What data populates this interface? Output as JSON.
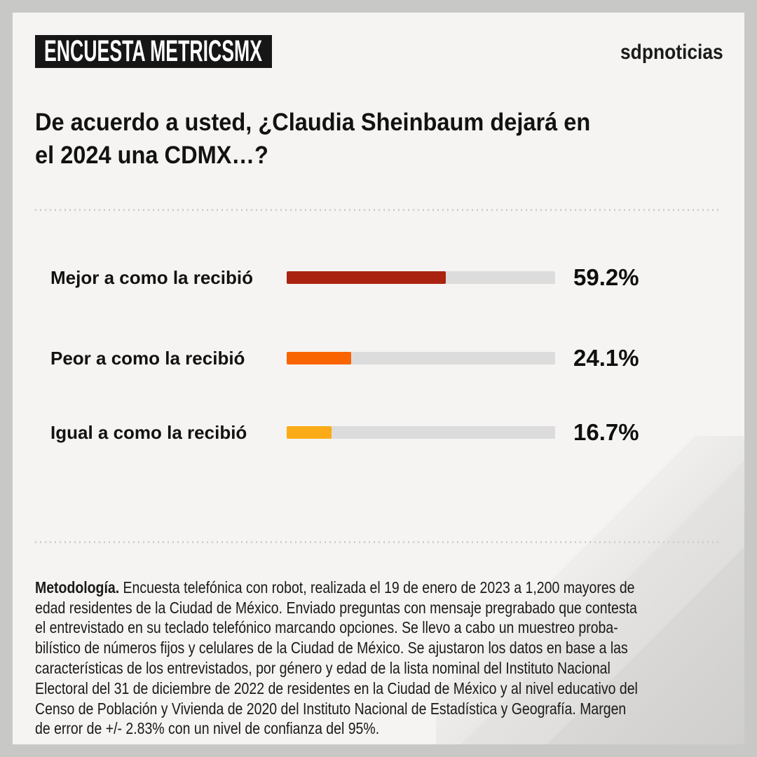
{
  "header": {
    "badge": "ENCUESTA METRICSMX",
    "brand": "sdpnoticias"
  },
  "question": "De acuerdo a usted, ¿Claudia Sheinbaum dejará en\nel 2024 una CDMX…?",
  "chart_data": {
    "type": "bar",
    "orientation": "horizontal",
    "categories": [
      "Mejor a como la recibió",
      "Peor a como la recibió",
      "Igual a como la recibió"
    ],
    "values": [
      59.2,
      24.1,
      16.7
    ],
    "value_labels": [
      "59.2%",
      "24.1%",
      "16.7%"
    ],
    "bar_colors": [
      "#a92310",
      "#fa6400",
      "#fbab18"
    ],
    "track_color": "#dcdcdc",
    "xlim": [
      0,
      100
    ],
    "grid": false,
    "legend": false
  },
  "methodology": {
    "title": "Metodología.",
    "body": " Encuesta telefónica con robot, realizada el 19 de enero de 2023 a 1,200 mayores de\nedad residentes de la Ciudad de México. Enviado preguntas con mensaje pregrabado que contesta\nel entrevistado en su teclado telefónico marcando opciones. Se llevo a cabo un muestreo proba-\nbilístico de números fijos y celulares de la Ciudad de México. Se ajustaron los datos en base a las\ncaracterísticas de los entrevistados, por género y edad de la lista nominal del Instituto Nacional\nElectoral del 31 de diciembre de 2022 de residentes en la Ciudad de México y al nivel educativo del\nCenso de Población y Vivienda de 2020 del Instituto Nacional de Estadística y Geografía. Margen\nde error de +/- 2.83% con un nivel de confianza del 95%."
  },
  "colors": {
    "page_background": "#c8c8c7",
    "card_background": "#f5f4f2",
    "badge_background": "#161616",
    "badge_text": "#ffffff",
    "text": "#121212",
    "divider_dots": "#cfcfcd"
  }
}
